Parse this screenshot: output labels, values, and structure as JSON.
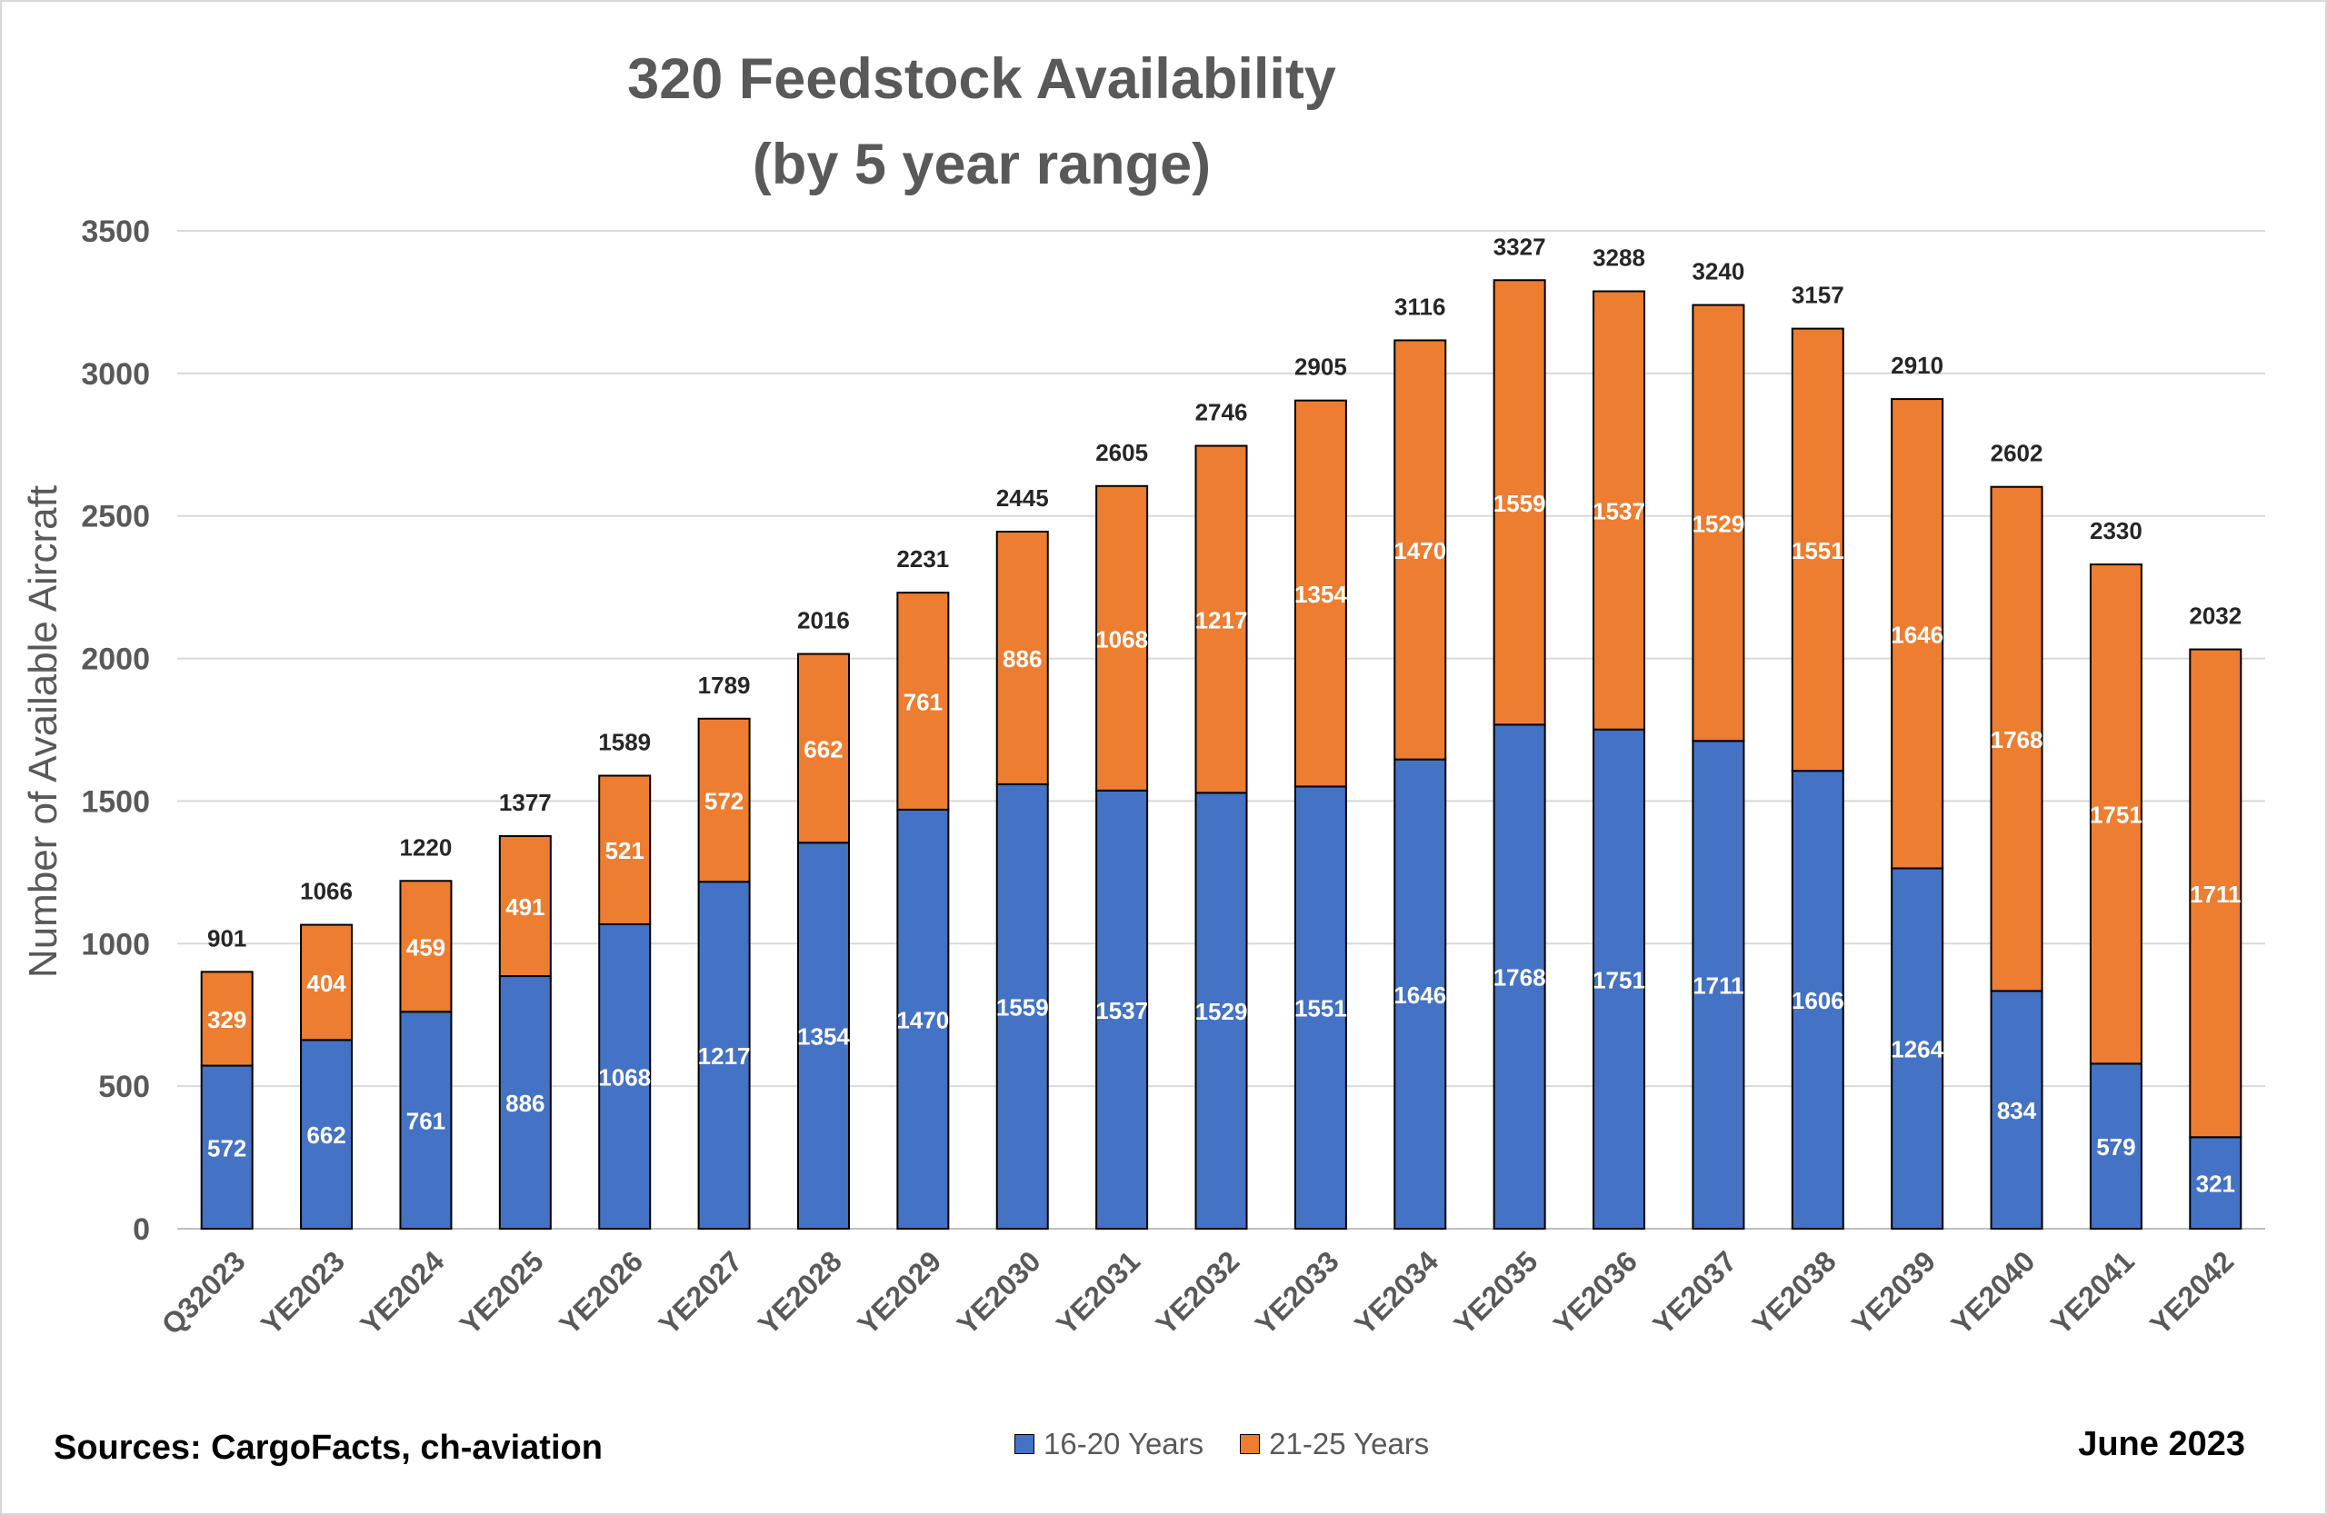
{
  "chart_data": {
    "type": "bar",
    "stacked": true,
    "title_line1": "320 Feedstock Availability",
    "title_line2": "(by 5 year range)",
    "ylabel": "Number of Available Aircraft",
    "xlabel": "",
    "ylim": [
      0,
      3500
    ],
    "yticks": [
      0,
      500,
      1000,
      1500,
      2000,
      2500,
      3000,
      3500
    ],
    "grid": true,
    "legend_position": "bottom",
    "categories": [
      "Q32023",
      "YE2023",
      "YE2024",
      "YE2025",
      "YE2026",
      "YE2027",
      "YE2028",
      "YE2029",
      "YE2030",
      "YE2031",
      "YE2032",
      "YE2033",
      "YE2034",
      "YE2035",
      "YE2036",
      "YE2037",
      "YE2038",
      "YE2039",
      "YE2040",
      "YE2041",
      "YE2042"
    ],
    "series": [
      {
        "name": "16-20 Years",
        "color": "#4472C4",
        "values": [
          572,
          662,
          761,
          886,
          1068,
          1217,
          1354,
          1470,
          1559,
          1537,
          1529,
          1551,
          1646,
          1768,
          1751,
          1711,
          1606,
          1264,
          834,
          579,
          321
        ]
      },
      {
        "name": "21-25 Years",
        "color": "#ED7D31",
        "values": [
          329,
          404,
          459,
          491,
          521,
          572,
          662,
          761,
          886,
          1068,
          1217,
          1354,
          1470,
          1559,
          1537,
          1529,
          1551,
          1646,
          1768,
          1751,
          1711
        ]
      }
    ],
    "totals": [
      901,
      1066,
      1220,
      1377,
      1589,
      1789,
      2016,
      2231,
      2445,
      2605,
      2746,
      2905,
      3116,
      3327,
      3288,
      3240,
      3157,
      2910,
      2602,
      2330,
      2032
    ]
  },
  "footer": {
    "sources": "Sources: CargoFacts, ch-aviation",
    "date": "June 2023"
  }
}
